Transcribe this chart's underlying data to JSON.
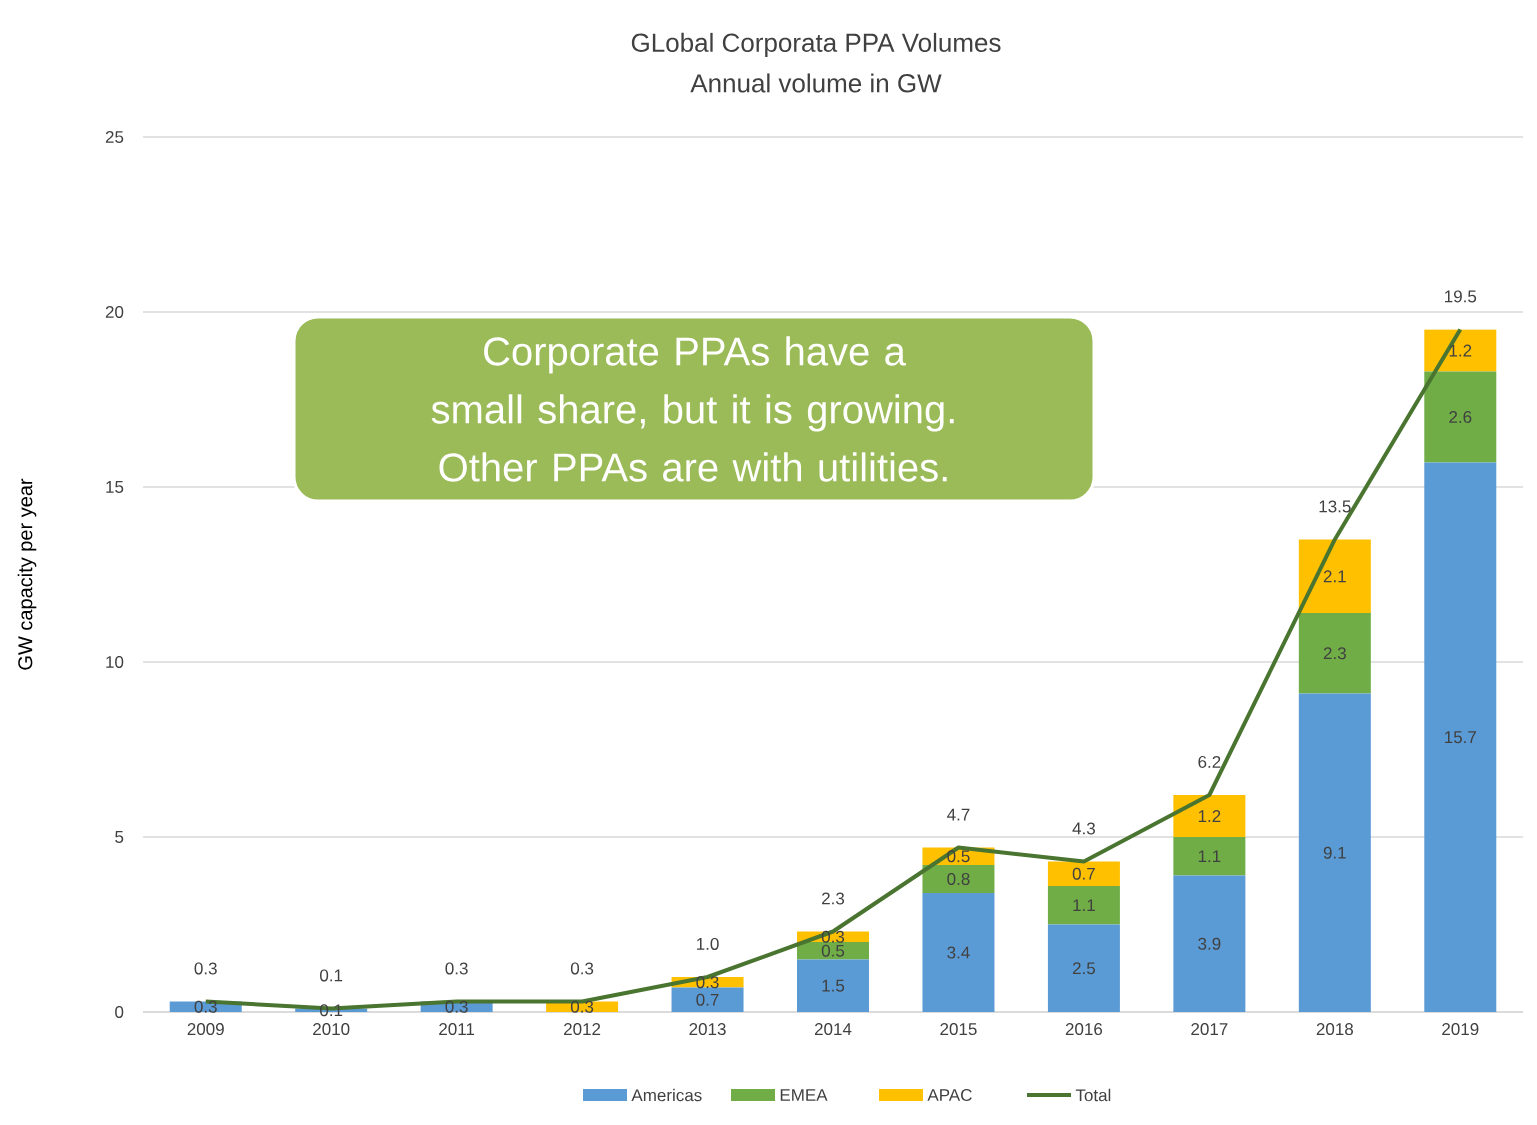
{
  "chart_data": {
    "type": "bar",
    "title": "GLobal Corporata PPA Volumes",
    "subtitle": "Annual volume in GW",
    "ylabel": "GW capacity per year",
    "categories": [
      "2009",
      "2010",
      "2011",
      "2012",
      "2013",
      "2014",
      "2015",
      "2016",
      "2017",
      "2018",
      "2019"
    ],
    "stacked": true,
    "ylim": [
      0,
      25
    ],
    "yticks": [
      0,
      5,
      10,
      15,
      20,
      25
    ],
    "grid": "y",
    "legend": "bottom",
    "series": [
      {
        "name": "Americas",
        "color": "#5b9bd5",
        "values": [
          0.3,
          0.1,
          0.3,
          0,
          0.7,
          1.5,
          3.4,
          2.5,
          3.9,
          9.1,
          15.7
        ],
        "value_labels": [
          "0.3",
          "0.1",
          "0.3",
          null,
          "0.7",
          "1.5",
          "3.4",
          "2.5",
          "3.9",
          "9.1",
          "15.7"
        ]
      },
      {
        "name": "EMEA",
        "color": "#70ad47",
        "values": [
          0,
          0,
          0,
          0,
          0,
          0.5,
          0.8,
          1.1,
          1.1,
          2.3,
          2.6
        ],
        "value_labels": [
          null,
          null,
          null,
          null,
          null,
          "0.5",
          "0.8",
          "1.1",
          "1.1",
          "2.3",
          "2.6"
        ]
      },
      {
        "name": "APAC",
        "color": "#ffc000",
        "values": [
          0,
          0,
          0,
          0.3,
          0.3,
          0.3,
          0.5,
          0.7,
          1.2,
          2.1,
          1.2
        ],
        "value_labels": [
          null,
          null,
          null,
          "0.3",
          "0.3",
          "0.3",
          "0.5",
          "0.7",
          "1.2",
          "2.1",
          "1.2"
        ]
      },
      {
        "name": "Total",
        "type": "line",
        "color": "#4a7530",
        "values": [
          0.3,
          0.1,
          0.3,
          0.3,
          1.0,
          2.3,
          4.7,
          4.3,
          6.2,
          13.5,
          19.5
        ],
        "value_labels": [
          "0.3",
          "0.1",
          "0.3",
          "0.3",
          "1.0",
          "2.3",
          "4.7",
          "4.3",
          "6.2",
          "13.5",
          "19.5"
        ]
      }
    ],
    "annotations": [
      "Corporate PPAs have a small share, but it is growing. Other PPAs are with utilities."
    ]
  }
}
